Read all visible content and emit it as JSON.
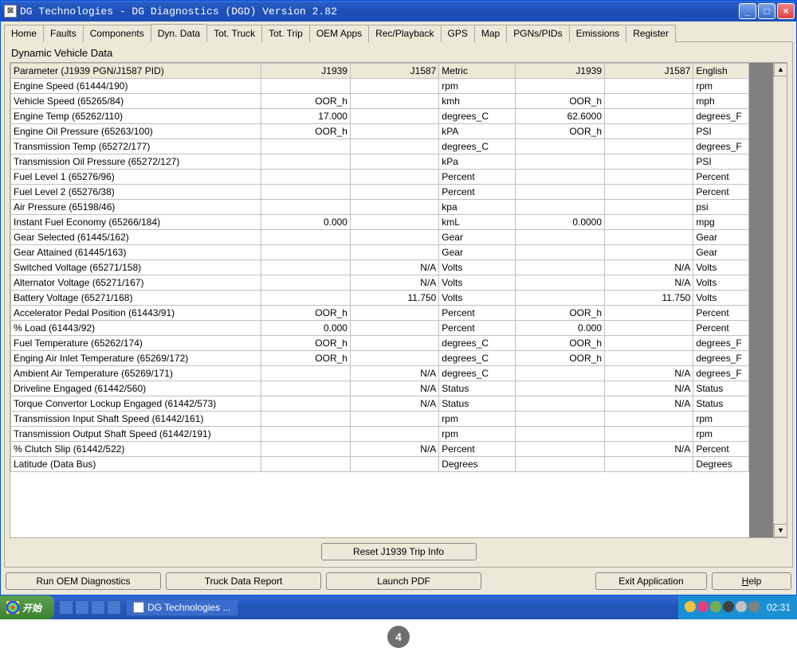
{
  "window": {
    "title": "DG Technologies - DG Diagnostics (DGD) Version 2.82"
  },
  "tabs": [
    "Home",
    "Faults",
    "Components",
    "Dyn. Data",
    "Tot. Truck",
    "Tot. Trip",
    "OEM Apps",
    "Rec/Playback",
    "GPS",
    "Map",
    "PGNs/PIDs",
    "Emissions",
    "Register"
  ],
  "activeTab": 3,
  "panel": {
    "subtitle": "Dynamic Vehicle Data"
  },
  "columns": [
    "Parameter (J1939 PGN/J1587 PID)",
    "J1939",
    "J1587",
    "Metric",
    "J1939",
    "J1587",
    "English"
  ],
  "rows": [
    {
      "p": "Engine Speed (61444/190)",
      "a": "",
      "b": "",
      "m": "rpm",
      "c": "",
      "d": "",
      "e": "rpm"
    },
    {
      "p": "Vehicle Speed (65265/84)",
      "a": "OOR_h",
      "b": "",
      "m": "kmh",
      "c": "OOR_h",
      "d": "",
      "e": "mph"
    },
    {
      "p": "Engine Temp (65262/110)",
      "a": "17.000",
      "b": "",
      "m": "degrees_C",
      "c": "62.6000",
      "d": "",
      "e": "degrees_F"
    },
    {
      "p": "Engine Oil Pressure (65263/100)",
      "a": "OOR_h",
      "b": "",
      "m": "kPA",
      "c": "OOR_h",
      "d": "",
      "e": "PSI"
    },
    {
      "p": "Transmission Temp (65272/177)",
      "a": "",
      "b": "",
      "m": "degrees_C",
      "c": "",
      "d": "",
      "e": "degrees_F"
    },
    {
      "p": "Transmission Oil Pressure (65272/127)",
      "a": "",
      "b": "",
      "m": "kPa",
      "c": "",
      "d": "",
      "e": "PSI"
    },
    {
      "p": "Fuel Level 1 (65276/96)",
      "a": "",
      "b": "",
      "m": "Percent",
      "c": "",
      "d": "",
      "e": "Percent"
    },
    {
      "p": "Fuel Level 2 (65276/38)",
      "a": "",
      "b": "",
      "m": "Percent",
      "c": "",
      "d": "",
      "e": "Percent"
    },
    {
      "p": "Air Pressure (65198/46)",
      "a": "",
      "b": "",
      "m": "kpa",
      "c": "",
      "d": "",
      "e": "psi"
    },
    {
      "p": "Instant Fuel Economy (65266/184)",
      "a": "0.000",
      "b": "",
      "m": "kmL",
      "c": "0.0000",
      "d": "",
      "e": "mpg"
    },
    {
      "p": "Gear Selected (61445/162)",
      "a": "",
      "b": "",
      "m": "Gear",
      "c": "",
      "d": "",
      "e": "Gear"
    },
    {
      "p": "Gear Attained (61445/163)",
      "a": "",
      "b": "",
      "m": "Gear",
      "c": "",
      "d": "",
      "e": "Gear"
    },
    {
      "p": "Switched Voltage (65271/158)",
      "a": "",
      "b": "N/A",
      "m": "Volts",
      "c": "",
      "d": "N/A",
      "e": "Volts"
    },
    {
      "p": "Alternator Voltage (65271/167)",
      "a": "",
      "b": "N/A",
      "m": "Volts",
      "c": "",
      "d": "N/A",
      "e": "Volts"
    },
    {
      "p": "Battery Voltage (65271/168)",
      "a": "",
      "b": "11.750",
      "m": "Volts",
      "c": "",
      "d": "11.750",
      "e": "Volts"
    },
    {
      "p": "Accelerator Pedal Position (61443/91)",
      "a": "OOR_h",
      "b": "",
      "m": "Percent",
      "c": "OOR_h",
      "d": "",
      "e": "Percent"
    },
    {
      "p": "% Load (61443/92)",
      "a": "0.000",
      "b": "",
      "m": "Percent",
      "c": "0.000",
      "d": "",
      "e": "Percent"
    },
    {
      "p": "Fuel Temperature (65262/174)",
      "a": "OOR_h",
      "b": "",
      "m": "degrees_C",
      "c": "OOR_h",
      "d": "",
      "e": "degrees_F"
    },
    {
      "p": "Enging Air Inlet Temperature (65269/172)",
      "a": "OOR_h",
      "b": "",
      "m": "degrees_C",
      "c": "OOR_h",
      "d": "",
      "e": "degrees_F"
    },
    {
      "p": "Ambient Air Temperature (65269/171)",
      "a": "",
      "b": "N/A",
      "m": "degrees_C",
      "c": "",
      "d": "N/A",
      "e": "degrees_F"
    },
    {
      "p": "Driveline Engaged (61442/560)",
      "a": "",
      "b": "N/A",
      "m": "Status",
      "c": "",
      "d": "N/A",
      "e": "Status"
    },
    {
      "p": "Torque Convertor Lockup Engaged (61442/573)",
      "a": "",
      "b": "N/A",
      "m": "Status",
      "c": "",
      "d": "N/A",
      "e": "Status"
    },
    {
      "p": "Transmission Input Shaft Speed (61442/161)",
      "a": "",
      "b": "",
      "m": "rpm",
      "c": "",
      "d": "",
      "e": "rpm"
    },
    {
      "p": "Transmission Output Shaft Speed (61442/191)",
      "a": "",
      "b": "",
      "m": "rpm",
      "c": "",
      "d": "",
      "e": "rpm"
    },
    {
      "p": "% Clutch Slip (61442/522)",
      "a": "",
      "b": "N/A",
      "m": "Percent",
      "c": "",
      "d": "N/A",
      "e": "Percent"
    },
    {
      "p": "Latitude (Data Bus)",
      "a": "",
      "b": "",
      "m": "Degrees",
      "c": "",
      "d": "",
      "e": "Degrees"
    }
  ],
  "colWidths": [
    "318px",
    "116px",
    "116px",
    "98px",
    "116px",
    "116px",
    "70px"
  ],
  "buttons": {
    "reset": "Reset J1939 Trip Info",
    "oem": "Run OEM Diagnostics",
    "report": "Truck Data Report",
    "pdf": "Launch PDF",
    "exit": "Exit Application",
    "help": "Help"
  },
  "taskbar": {
    "start": "开始",
    "task": "DG Technologies ...",
    "clock": "02:31",
    "trayColors": [
      "#f0c040",
      "#e04080",
      "#70b050",
      "#404040",
      "#c0c0c0",
      "#808080"
    ]
  },
  "badge": "4"
}
